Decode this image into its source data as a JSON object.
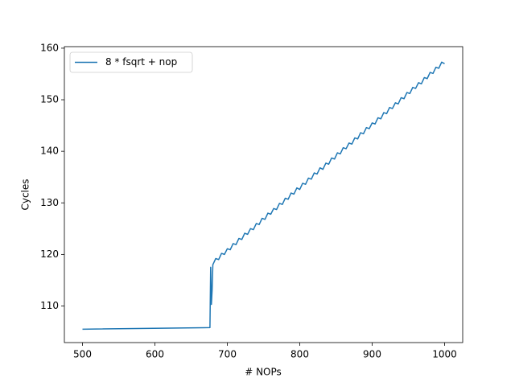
{
  "chart_data": {
    "type": "line",
    "xlabel": "# NOPs",
    "ylabel": "Cycles",
    "x": [
      500,
      676,
      677,
      678,
      679,
      680,
      684,
      688,
      692,
      696,
      700,
      704,
      708,
      712,
      716,
      720,
      724,
      728,
      732,
      736,
      740,
      744,
      748,
      752,
      756,
      760,
      764,
      768,
      772,
      776,
      780,
      784,
      788,
      792,
      796,
      800,
      804,
      808,
      812,
      816,
      820,
      824,
      828,
      832,
      836,
      840,
      844,
      848,
      852,
      856,
      860,
      864,
      868,
      872,
      876,
      880,
      884,
      888,
      892,
      896,
      900,
      904,
      908,
      912,
      916,
      920,
      924,
      928,
      932,
      936,
      940,
      944,
      948,
      952,
      956,
      960,
      964,
      968,
      972,
      976,
      980,
      984,
      988,
      992,
      996,
      1000
    ],
    "series": [
      {
        "name": "8 * fsqrt + nop",
        "color": "#1f77b4",
        "values": [
          105.5,
          105.8,
          117.5,
          110.3,
          113.0,
          118.0,
          119.2,
          119.0,
          120.2,
          120.0,
          121.1,
          120.9,
          122.1,
          121.9,
          123.1,
          122.9,
          124.1,
          123.9,
          125.0,
          124.8,
          126.0,
          125.8,
          127.0,
          126.8,
          128.0,
          127.8,
          128.9,
          128.7,
          129.9,
          129.7,
          130.9,
          130.7,
          131.9,
          131.7,
          132.9,
          132.6,
          133.8,
          133.6,
          134.8,
          134.6,
          135.8,
          135.6,
          136.8,
          136.5,
          137.7,
          137.5,
          138.7,
          138.5,
          139.7,
          139.5,
          140.7,
          140.5,
          141.6,
          141.4,
          142.6,
          142.4,
          143.6,
          143.4,
          144.6,
          144.4,
          145.5,
          145.3,
          146.5,
          146.3,
          147.5,
          147.3,
          148.5,
          148.3,
          149.4,
          149.2,
          150.4,
          150.2,
          151.4,
          151.2,
          152.4,
          152.2,
          153.3,
          153.1,
          154.3,
          154.1,
          155.3,
          155.1,
          156.3,
          156.1,
          157.3,
          157.0
        ]
      }
    ],
    "xlim": [
      475,
      1025
    ],
    "xticks": [
      500,
      600,
      700,
      800,
      900,
      1000
    ],
    "ylim": [
      102.9,
      160.3
    ],
    "yticks": [
      110,
      120,
      130,
      140,
      150,
      160
    ],
    "legend": "upper left"
  }
}
